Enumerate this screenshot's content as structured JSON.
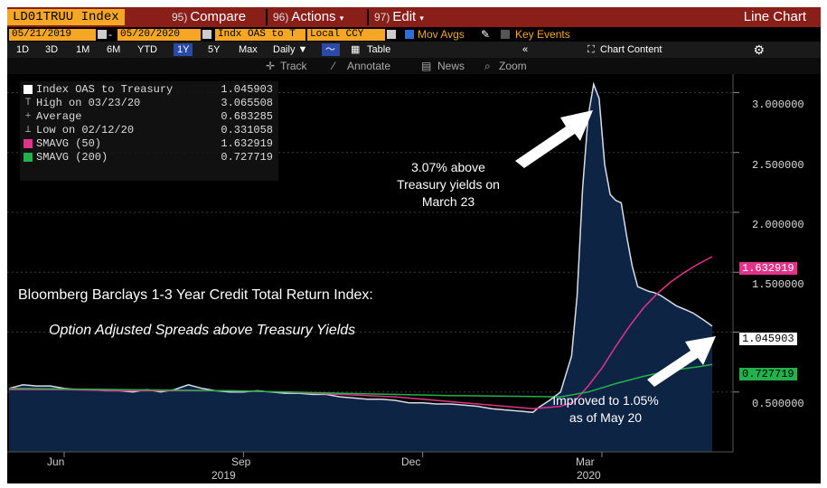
{
  "toolbar": {
    "ticker": "LD01TRUU Index",
    "menu": [
      {
        "num": "95)",
        "label": "Compare"
      },
      {
        "num": "96)",
        "label": "Actions"
      },
      {
        "num": "97)",
        "label": "Edit"
      }
    ],
    "chart_title": "Line Chart"
  },
  "controls": {
    "start_date": "05/21/2019",
    "end_date": "05/20/2020",
    "field": "Indx OAS to T",
    "currency": "Local CCY",
    "mov_avgs": "Mov Avgs",
    "key_events": "Key Events"
  },
  "timeframes": {
    "items": [
      "1D",
      "3D",
      "1M",
      "6M",
      "YTD",
      "1Y",
      "5Y",
      "Max"
    ],
    "active": "1Y",
    "period": "Daily ▼",
    "table": "Table",
    "chart_content": "Chart Content",
    "collapse": "«"
  },
  "tools": {
    "track": "Track",
    "annotate": "Annotate",
    "news": "News",
    "zoom": "Zoom"
  },
  "legend": [
    {
      "marker": "square",
      "color": "#ffffff",
      "name": "Index OAS to Treasury",
      "value": "1.045903"
    },
    {
      "marker": "T",
      "color": "#aaaaaa",
      "name": "High on 03/23/20",
      "value": "3.065508"
    },
    {
      "marker": "+",
      "color": "#aaaaaa",
      "name": "Average",
      "value": "0.683285"
    },
    {
      "marker": "⊥",
      "color": "#aaaaaa",
      "name": "Low on 02/12/20",
      "value": "0.331058"
    },
    {
      "marker": "square",
      "color": "#e0338a",
      "name": "SMAVG (50)",
      "value": "1.632919"
    },
    {
      "marker": "square",
      "color": "#22b14c",
      "name": "SMAVG (200)",
      "value": "0.727719"
    }
  ],
  "annotations": {
    "peak": [
      "3.07% above",
      "Treasury yields on",
      "March 23"
    ],
    "improved": [
      "Improved to 1.05%",
      "as of May 20"
    ],
    "title_line1": "Bloomberg Barclays 1-3 Year Credit Total Return Index:",
    "title_line2": "Option Adjusted Spreads above Treasury Yields"
  },
  "chart_data": {
    "type": "area",
    "x_labels": [
      "Jun",
      "Sep",
      "Dec",
      "Mar"
    ],
    "year_labels": [
      "2019",
      "2020"
    ],
    "y_ticks": [
      "3.000000",
      "2.500000",
      "2.000000",
      "1.500000",
      "0.500000"
    ],
    "ylim": [
      0.0,
      3.15
    ],
    "colors": {
      "oas_fill": "#0e2445",
      "oas_line": "#d8dde6",
      "sma50": "#e0338a",
      "sma200": "#22b14c",
      "grid": "#3a3a3a"
    },
    "value_tags": [
      {
        "label": "1.632919",
        "value": 1.632919,
        "bg": "#e0338a",
        "fg": "#ffffff"
      },
      {
        "label": "1.045903",
        "value": 1.045903,
        "bg": "#ffffff",
        "fg": "#000000"
      },
      {
        "label": "0.727719",
        "value": 0.727719,
        "bg": "#22b14c",
        "fg": "#000000"
      }
    ],
    "series": [
      {
        "name": "Index OAS to Treasury",
        "x": [
          0,
          5,
          10,
          15,
          20,
          25,
          30,
          35,
          40,
          45,
          50,
          55,
          60,
          65,
          70,
          75,
          80,
          85,
          90,
          95,
          100,
          105,
          110,
          115,
          120,
          125,
          130,
          135,
          140,
          145,
          150,
          155,
          160,
          165,
          170,
          175,
          180,
          185,
          190,
          192,
          196,
          200,
          204,
          206,
          208,
          210,
          212,
          214,
          216,
          218,
          220,
          222,
          224,
          226,
          228,
          230,
          232,
          234,
          236,
          238,
          240,
          242,
          244,
          246,
          248,
          250,
          252,
          255
        ],
        "y": [
          0.53,
          0.56,
          0.55,
          0.55,
          0.53,
          0.52,
          0.52,
          0.51,
          0.51,
          0.5,
          0.52,
          0.5,
          0.52,
          0.56,
          0.53,
          0.51,
          0.5,
          0.5,
          0.51,
          0.5,
          0.49,
          0.49,
          0.48,
          0.48,
          0.46,
          0.45,
          0.44,
          0.44,
          0.43,
          0.41,
          0.41,
          0.4,
          0.4,
          0.39,
          0.38,
          0.36,
          0.35,
          0.34,
          0.33,
          0.37,
          0.43,
          0.5,
          0.8,
          1.3,
          2.2,
          2.8,
          3.07,
          2.95,
          2.4,
          2.15,
          2.1,
          2.08,
          1.8,
          1.55,
          1.38,
          1.36,
          1.34,
          1.33,
          1.31,
          1.28,
          1.25,
          1.22,
          1.2,
          1.18,
          1.16,
          1.13,
          1.1,
          1.05
        ]
      },
      {
        "name": "SMAVG (50)",
        "x": [
          0,
          20,
          40,
          60,
          80,
          100,
          120,
          140,
          160,
          180,
          190,
          200,
          205,
          210,
          215,
          220,
          225,
          230,
          235,
          240,
          245,
          250,
          255
        ],
        "y": [
          0.52,
          0.52,
          0.51,
          0.51,
          0.51,
          0.5,
          0.48,
          0.46,
          0.42,
          0.38,
          0.36,
          0.38,
          0.42,
          0.55,
          0.7,
          0.88,
          1.05,
          1.2,
          1.32,
          1.42,
          1.5,
          1.57,
          1.63
        ]
      },
      {
        "name": "SMAVG (200)",
        "x": [
          0,
          40,
          80,
          120,
          160,
          200,
          210,
          220,
          230,
          240,
          250,
          255
        ],
        "y": [
          0.53,
          0.52,
          0.51,
          0.49,
          0.47,
          0.46,
          0.5,
          0.57,
          0.63,
          0.68,
          0.71,
          0.73
        ]
      }
    ]
  }
}
